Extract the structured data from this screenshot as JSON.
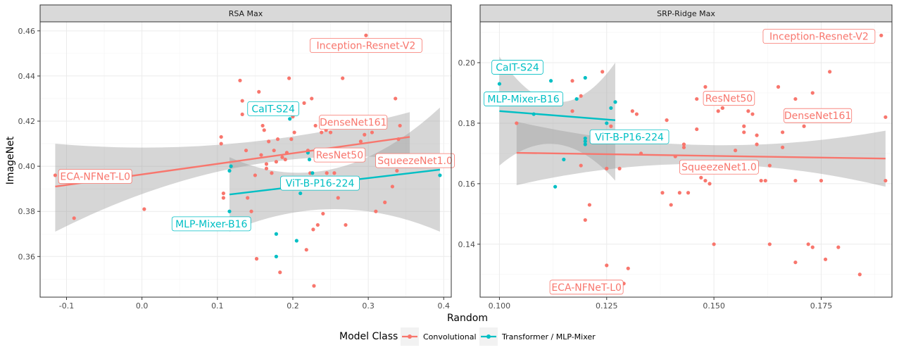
{
  "figure": {
    "x_axis_title": "Random",
    "y_axis_title": "ImageNet",
    "legend_title": "Model Class",
    "legend_position": "bottom"
  },
  "colors": {
    "Convolutional": "#F8766D",
    "Transformer / MLP-Mixer": "#00BFC4",
    "ribbon": "#999999",
    "grid_major": "#EBEBEB",
    "strip_fill": "#D9D9D9"
  },
  "legend": {
    "items": [
      {
        "label": "Convolutional",
        "color": "#F8766D"
      },
      {
        "label": "Transformer / MLP-Mixer",
        "color": "#00BFC4"
      }
    ]
  },
  "chart_data": [
    {
      "type": "scatter",
      "title": "RSA Max",
      "xlabel": "Random",
      "ylabel": "ImageNet",
      "xlim": [
        -0.135,
        0.41
      ],
      "ylim": [
        0.342,
        0.464
      ],
      "x_ticks": [
        -0.1,
        0.0,
        0.1,
        0.2,
        0.3,
        0.4
      ],
      "x_tick_labels": [
        "-0.1",
        "0.0",
        "0.1",
        "0.2",
        "0.3",
        "0.4"
      ],
      "y_ticks": [
        0.36,
        0.38,
        0.4,
        0.42,
        0.44,
        0.46
      ],
      "y_tick_labels": [
        "0.36",
        "0.38",
        "0.40",
        "0.42",
        "0.44",
        "0.46"
      ],
      "grid": true,
      "series": [
        {
          "name": "Convolutional",
          "color": "#F8766D",
          "points": [
            [
              -0.115,
              0.396
            ],
            [
              -0.09,
              0.377
            ],
            [
              0.003,
              0.381
            ],
            [
              0.105,
              0.413
            ],
            [
              0.105,
              0.41
            ],
            [
              0.108,
              0.388
            ],
            [
              0.108,
              0.386
            ],
            [
              0.13,
              0.438
            ],
            [
              0.133,
              0.429
            ],
            [
              0.133,
              0.423
            ],
            [
              0.138,
              0.407
            ],
            [
              0.14,
              0.386
            ],
            [
              0.145,
              0.38
            ],
            [
              0.15,
              0.396
            ],
            [
              0.152,
              0.359
            ],
            [
              0.155,
              0.433
            ],
            [
              0.158,
              0.405
            ],
            [
              0.16,
              0.418
            ],
            [
              0.162,
              0.416
            ],
            [
              0.165,
              0.401
            ],
            [
              0.165,
              0.399
            ],
            [
              0.168,
              0.411
            ],
            [
              0.17,
              0.428
            ],
            [
              0.172,
              0.397
            ],
            [
              0.175,
              0.407
            ],
            [
              0.178,
              0.402
            ],
            [
              0.18,
              0.412
            ],
            [
              0.183,
              0.353
            ],
            [
              0.186,
              0.404
            ],
            [
              0.188,
              0.393
            ],
            [
              0.19,
              0.403
            ],
            [
              0.192,
              0.406
            ],
            [
              0.195,
              0.439
            ],
            [
              0.198,
              0.412
            ],
            [
              0.2,
              0.422
            ],
            [
              0.202,
              0.415
            ],
            [
              0.215,
              0.428
            ],
            [
              0.218,
              0.363
            ],
            [
              0.22,
              0.407
            ],
            [
              0.223,
              0.397
            ],
            [
              0.225,
              0.43
            ],
            [
              0.227,
              0.372
            ],
            [
              0.228,
              0.347
            ],
            [
              0.23,
              0.418
            ],
            [
              0.233,
              0.374
            ],
            [
              0.238,
              0.415
            ],
            [
              0.24,
              0.379
            ],
            [
              0.244,
              0.416
            ],
            [
              0.245,
              0.397
            ],
            [
              0.25,
              0.415
            ],
            [
              0.255,
              0.397
            ],
            [
              0.26,
              0.386
            ],
            [
              0.265,
              0.418
            ],
            [
              0.266,
              0.439
            ],
            [
              0.27,
              0.374
            ],
            [
              0.27,
              0.406
            ],
            [
              0.275,
              0.405
            ],
            [
              0.28,
              0.393
            ],
            [
              0.285,
              0.421
            ],
            [
              0.29,
              0.411
            ],
            [
              0.295,
              0.414
            ],
            [
              0.297,
              0.458
            ],
            [
              0.305,
              0.415
            ],
            [
              0.31,
              0.38
            ],
            [
              0.322,
              0.384
            ],
            [
              0.332,
              0.391
            ],
            [
              0.336,
              0.43
            ],
            [
              0.338,
              0.398
            ],
            [
              0.34,
              0.412
            ],
            [
              0.342,
              0.418
            ],
            [
              0.355,
              0.401
            ]
          ]
        },
        {
          "name": "Transformer / MLP-Mixer",
          "color": "#00BFC4",
          "points": [
            [
              0.116,
              0.398
            ],
            [
              0.118,
              0.4
            ],
            [
              0.116,
              0.38
            ],
            [
              0.178,
              0.37
            ],
            [
              0.178,
              0.36
            ],
            [
              0.196,
              0.421
            ],
            [
              0.205,
              0.367
            ],
            [
              0.21,
              0.388
            ],
            [
              0.22,
              0.406
            ],
            [
              0.222,
              0.403
            ],
            [
              0.226,
              0.397
            ],
            [
              0.395,
              0.396
            ]
          ]
        }
      ],
      "trend_lines": [
        {
          "name": "Convolutional",
          "x": [
            -0.115,
            0.355
          ],
          "y": [
            0.391,
            0.413
          ],
          "ribbon_at_start": [
            0.371,
            0.41
          ],
          "ribbon_at_mid": [
            0.399,
            0.41
          ],
          "ribbon_at_end": [
            0.403,
            0.424
          ]
        },
        {
          "name": "Transformer / MLP-Mixer",
          "x": [
            0.116,
            0.395
          ],
          "y": [
            0.3875,
            0.3985
          ],
          "ribbon_at_start": [
            0.371,
            0.404
          ],
          "ribbon_at_mid": [
            0.381,
            0.399
          ],
          "ribbon_at_end": [
            0.371,
            0.426
          ]
        }
      ],
      "annotations": [
        {
          "text": "Inception-Resnet-V2",
          "series": "Convolutional",
          "x": 0.297,
          "y": 0.4535
        },
        {
          "text": "DenseNet161",
          "series": "Convolutional",
          "x": 0.28,
          "y": 0.4195
        },
        {
          "text": "ResNet50",
          "series": "Convolutional",
          "x": 0.262,
          "y": 0.405
        },
        {
          "text": "SqueezeNet1.0",
          "series": "Convolutional",
          "x": 0.362,
          "y": 0.4025
        },
        {
          "text": "ECA-NFNeT-L0",
          "series": "Convolutional",
          "x": -0.062,
          "y": 0.3955
        },
        {
          "text": "CaIT-S24",
          "series": "Transformer / MLP-Mixer",
          "x": 0.174,
          "y": 0.4255
        },
        {
          "text": "ViT-B-P16-224",
          "series": "Transformer / MLP-Mixer",
          "x": 0.236,
          "y": 0.3925
        },
        {
          "text": "MLP-Mixer-B16",
          "series": "Transformer / MLP-Mixer",
          "x": 0.092,
          "y": 0.3745
        }
      ]
    },
    {
      "type": "scatter",
      "title": "SRP-Ridge Max",
      "xlabel": "Random",
      "ylabel": "ImageNet",
      "xlim": [
        0.0955,
        0.1915
      ],
      "ylim": [
        0.1225,
        0.2135
      ],
      "x_ticks": [
        0.1,
        0.125,
        0.15,
        0.175
      ],
      "x_tick_labels": [
        "0.100",
        "0.125",
        "0.150",
        "0.175"
      ],
      "y_ticks": [
        0.14,
        0.16,
        0.18,
        0.2
      ],
      "y_tick_labels": [
        "0.14",
        "0.16",
        "0.18",
        "0.20"
      ],
      "grid": true,
      "series": [
        {
          "name": "Convolutional",
          "color": "#F8766D",
          "points": [
            [
              0.104,
              0.18
            ],
            [
              0.117,
              0.194
            ],
            [
              0.117,
              0.184
            ],
            [
              0.119,
              0.189
            ],
            [
              0.119,
              0.166
            ],
            [
              0.12,
              0.148
            ],
            [
              0.121,
              0.153
            ],
            [
              0.124,
              0.197
            ],
            [
              0.125,
              0.165
            ],
            [
              0.125,
              0.133
            ],
            [
              0.126,
              0.179
            ],
            [
              0.127,
              0.175
            ],
            [
              0.128,
              0.165
            ],
            [
              0.129,
              0.127
            ],
            [
              0.13,
              0.132
            ],
            [
              0.131,
              0.184
            ],
            [
              0.132,
              0.183
            ],
            [
              0.133,
              0.17
            ],
            [
              0.138,
              0.157
            ],
            [
              0.139,
              0.181
            ],
            [
              0.14,
              0.153
            ],
            [
              0.141,
              0.169
            ],
            [
              0.142,
              0.157
            ],
            [
              0.143,
              0.173
            ],
            [
              0.143,
              0.172
            ],
            [
              0.144,
              0.157
            ],
            [
              0.146,
              0.188
            ],
            [
              0.146,
              0.178
            ],
            [
              0.147,
              0.162
            ],
            [
              0.148,
              0.192
            ],
            [
              0.148,
              0.161
            ],
            [
              0.149,
              0.16
            ],
            [
              0.15,
              0.14
            ],
            [
              0.151,
              0.184
            ],
            [
              0.152,
              0.185
            ],
            [
              0.152,
              0.185
            ],
            [
              0.155,
              0.171
            ],
            [
              0.156,
              0.19
            ],
            [
              0.157,
              0.179
            ],
            [
              0.157,
              0.177
            ],
            [
              0.158,
              0.184
            ],
            [
              0.159,
              0.183
            ],
            [
              0.16,
              0.173
            ],
            [
              0.16,
              0.176
            ],
            [
              0.161,
              0.161
            ],
            [
              0.162,
              0.161
            ],
            [
              0.163,
              0.14
            ],
            [
              0.163,
              0.166
            ],
            [
              0.165,
              0.192
            ],
            [
              0.166,
              0.177
            ],
            [
              0.166,
              0.172
            ],
            [
              0.168,
              0.182
            ],
            [
              0.169,
              0.134
            ],
            [
              0.169,
              0.161
            ],
            [
              0.169,
              0.188
            ],
            [
              0.171,
              0.179
            ],
            [
              0.172,
              0.14
            ],
            [
              0.173,
              0.139
            ],
            [
              0.173,
              0.19
            ],
            [
              0.175,
              0.161
            ],
            [
              0.176,
              0.135
            ],
            [
              0.177,
              0.197
            ],
            [
              0.179,
              0.139
            ],
            [
              0.184,
              0.13
            ],
            [
              0.189,
              0.209
            ],
            [
              0.19,
              0.182
            ],
            [
              0.19,
              0.161
            ]
          ]
        },
        {
          "name": "Transformer / MLP-Mixer",
          "color": "#00BFC4",
          "points": [
            [
              0.1,
              0.193
            ],
            [
              0.108,
              0.183
            ],
            [
              0.112,
              0.194
            ],
            [
              0.113,
              0.159
            ],
            [
              0.115,
              0.168
            ],
            [
              0.118,
              0.188
            ],
            [
              0.12,
              0.174
            ],
            [
              0.12,
              0.175
            ],
            [
              0.12,
              0.173
            ],
            [
              0.12,
              0.195
            ],
            [
              0.125,
              0.18
            ],
            [
              0.126,
              0.185
            ],
            [
              0.127,
              0.187
            ]
          ]
        }
      ],
      "trend_lines": [
        {
          "name": "Convolutional",
          "x": [
            0.104,
            0.19
          ],
          "y": [
            0.1702,
            0.1683
          ],
          "ribbon_at_start": [
            0.1595,
            0.1805
          ],
          "ribbon_at_mid": [
            0.1665,
            0.1728
          ],
          "ribbon_at_end": [
            0.159,
            0.1775
          ]
        },
        {
          "name": "Transformer / MLP-Mixer",
          "x": [
            0.1,
            0.127
          ],
          "y": [
            0.184,
            0.181
          ],
          "ribbon_at_start": [
            0.166,
            0.202
          ],
          "ribbon_at_mid": [
            0.173,
            0.187
          ],
          "ribbon_at_end": [
            0.161,
            0.2
          ]
        }
      ],
      "annotations": [
        {
          "text": "Inception-Resnet-V2",
          "series": "Convolutional",
          "x": 0.1745,
          "y": 0.2087
        },
        {
          "text": "ResNet50",
          "series": "Convolutional",
          "x": 0.1535,
          "y": 0.1882
        },
        {
          "text": "DenseNet161",
          "series": "Convolutional",
          "x": 0.1742,
          "y": 0.1825
        },
        {
          "text": "SqueezeNet1.0",
          "series": "Convolutional",
          "x": 0.1512,
          "y": 0.1655
        },
        {
          "text": "ECA-NFNeT-L0",
          "series": "Convolutional",
          "x": 0.1203,
          "y": 0.1258
        },
        {
          "text": "CaIT-S24",
          "series": "Transformer / MLP-Mixer",
          "x": 0.1042,
          "y": 0.1985
        },
        {
          "text": "MLP-Mixer-B16",
          "series": "Transformer / MLP-Mixer",
          "x": 0.1056,
          "y": 0.188
        },
        {
          "text": "ViT-B-P16-224",
          "series": "Transformer / MLP-Mixer",
          "x": 0.1303,
          "y": 0.1755
        }
      ]
    }
  ]
}
